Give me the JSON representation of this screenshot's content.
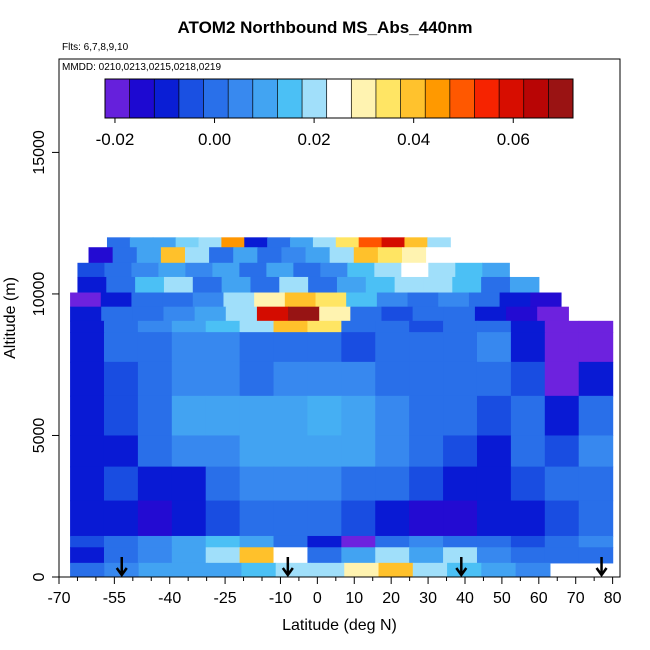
{
  "chart_data": {
    "type": "heatmap",
    "title": "ATOM2 Northbound MS_Abs_440nm",
    "flights_label": "Flts: 6,7,8,9,10",
    "dates_label": "MMDD: 0210,0213,0215,0218,0219",
    "xlabel": "Latitude (deg N)",
    "ylabel": "Altitude (m)",
    "xlim": [
      -70,
      82
    ],
    "ylim": [
      0,
      18300
    ],
    "x_ticks": [
      -70,
      -55,
      -40,
      -25,
      -10,
      0,
      10,
      20,
      30,
      40,
      50,
      60,
      70,
      80
    ],
    "x_minor_ticks": [
      -65,
      -60,
      -50,
      -45,
      -35,
      -30,
      -20,
      -15,
      -5,
      5,
      15,
      25,
      35,
      45,
      55,
      65,
      75
    ],
    "y_ticks": [
      0,
      5000,
      10000,
      15000
    ],
    "grid": false,
    "colorbar": {
      "range": [
        -0.022,
        0.072
      ],
      "ticks": [
        -0.02,
        0.0,
        0.02,
        0.04,
        0.06
      ],
      "tick_labels": [
        "-0.02",
        "0.00",
        "0.02",
        "0.04",
        "0.06"
      ],
      "colors": [
        "#8a2be2",
        "#0000cd",
        "#1f5fe6",
        "#3b8ef0",
        "#4cc3f5",
        "#ffffff",
        "#ffe96a",
        "#ffa600",
        "#ff2a00",
        "#c40000",
        "#8b1a1a"
      ]
    },
    "profile_markers_lat": [
      -53,
      -8,
      39,
      77
    ],
    "layers": [
      {
        "alt": [
          11650,
          12000
        ],
        "lat": [
          -57,
          36
        ],
        "values": [
          0.0,
          0.01,
          0.01,
          0.018,
          0.02,
          0.045,
          -0.01,
          0.0,
          0.01,
          0.02,
          0.035,
          0.05,
          0.06,
          0.04,
          0.02
        ]
      },
      {
        "alt": [
          11100,
          11650
        ],
        "lat": [
          -62,
          36
        ],
        "values": [
          -0.015,
          0.0,
          0.01,
          0.04,
          0.02,
          0.0,
          0.01,
          0.0,
          0.005,
          0.01,
          0.02,
          0.04,
          0.035,
          0.03,
          0.025
        ]
      },
      {
        "alt": [
          10600,
          11100
        ],
        "lat": [
          -65,
          52
        ],
        "values": [
          -0.005,
          0.0,
          0.005,
          0.01,
          0.005,
          0.01,
          0.0,
          0.01,
          0.0,
          0.005,
          0.015,
          0.02,
          0.025,
          0.02,
          0.015,
          0.01
        ]
      },
      {
        "alt": [
          10050,
          10600
        ],
        "lat": [
          -65,
          60
        ],
        "values": [
          -0.01,
          0.0,
          0.015,
          0.02,
          0.0,
          0.01,
          0.0,
          0.02,
          0.0,
          0.01,
          0.015,
          0.02,
          0.02,
          0.015,
          0.0,
          0.01
        ]
      },
      {
        "alt": [
          9550,
          10050
        ],
        "lat": [
          -67,
          66
        ],
        "values": [
          -0.02,
          -0.01,
          0.0,
          0.0,
          0.005,
          0.02,
          0.03,
          0.04,
          0.035,
          0.015,
          0.005,
          0.0,
          0.005,
          0.0,
          -0.01,
          -0.015
        ]
      },
      {
        "alt": [
          9050,
          9550
        ],
        "lat": [
          -67,
          68
        ],
        "values": [
          -0.01,
          0.0,
          0.0,
          0.005,
          0.01,
          0.02,
          0.06,
          0.07,
          0.03,
          0.0,
          -0.005,
          0.0,
          0.0,
          -0.01,
          -0.015,
          -0.02
        ]
      },
      {
        "alt": [
          8650,
          9050
        ],
        "lat": [
          -67,
          80
        ],
        "values": [
          -0.01,
          0.0,
          0.005,
          0.01,
          0.015,
          0.02,
          0.04,
          0.035,
          0.0,
          0.0,
          -0.005,
          0.0,
          0.0,
          -0.01,
          -0.02,
          -0.02
        ]
      },
      {
        "alt": [
          7600,
          8650
        ],
        "lat": [
          -67,
          80
        ],
        "values": [
          -0.01,
          0.0,
          0.0,
          0.005,
          0.005,
          0.0,
          0.0,
          0.0,
          -0.005,
          0.0,
          0.0,
          0.0,
          0.005,
          -0.01,
          -0.02,
          -0.02
        ]
      },
      {
        "alt": [
          6400,
          7600
        ],
        "lat": [
          -67,
          80
        ],
        "values": [
          -0.01,
          -0.005,
          0.0,
          0.005,
          0.005,
          0.0,
          0.005,
          0.005,
          0.005,
          0.0,
          0.0,
          0.0,
          0.0,
          -0.005,
          -0.02,
          -0.01
        ]
      },
      {
        "alt": [
          5000,
          6400
        ],
        "lat": [
          -67,
          80
        ],
        "values": [
          -0.01,
          -0.005,
          0.0,
          0.01,
          0.01,
          0.01,
          0.01,
          0.012,
          0.01,
          0.005,
          0.0,
          0.0,
          -0.005,
          0.0,
          -0.01,
          0.0
        ]
      },
      {
        "alt": [
          3900,
          5000
        ],
        "lat": [
          -67,
          80
        ],
        "values": [
          -0.01,
          -0.01,
          0.0,
          0.005,
          0.005,
          0.01,
          0.01,
          0.01,
          0.01,
          0.005,
          0.0,
          -0.005,
          -0.01,
          0.0,
          -0.005,
          0.005
        ]
      },
      {
        "alt": [
          2700,
          3900
        ],
        "lat": [
          -67,
          80
        ],
        "values": [
          -0.01,
          -0.005,
          -0.01,
          -0.01,
          0.0,
          0.005,
          0.005,
          0.005,
          0.0,
          0.0,
          -0.005,
          -0.01,
          -0.01,
          -0.005,
          0.0,
          0.0
        ]
      },
      {
        "alt": [
          1450,
          2700
        ],
        "lat": [
          -67,
          80
        ],
        "values": [
          -0.01,
          -0.01,
          -0.015,
          -0.01,
          -0.005,
          0.0,
          0.0,
          0.0,
          -0.005,
          -0.01,
          -0.015,
          -0.015,
          -0.01,
          -0.01,
          -0.005,
          0.0
        ]
      },
      {
        "alt": [
          1050,
          1450
        ],
        "lat": [
          -67,
          80
        ],
        "values": [
          -0.005,
          0.0,
          0.005,
          0.01,
          0.015,
          0.01,
          0.0,
          -0.01,
          -0.02,
          0.0,
          0.005,
          0.0,
          0.0,
          -0.005,
          0.0,
          0.005
        ]
      },
      {
        "alt": [
          500,
          1050
        ],
        "lat": [
          -67,
          80
        ],
        "values": [
          -0.01,
          0.0,
          0.005,
          0.01,
          0.02,
          0.04,
          0.025,
          0.0,
          0.01,
          0.02,
          0.01,
          0.02,
          0.005,
          0.0,
          0.0,
          0.0
        ]
      },
      {
        "alt": [
          0,
          500
        ],
        "lat": [
          -67,
          63
        ],
        "values": [
          0.0,
          0.005,
          0.01,
          0.01,
          0.01,
          0.015,
          0.02,
          0.02,
          0.03,
          0.04,
          0.02,
          0.015,
          0.01,
          0.005
        ]
      }
    ]
  }
}
